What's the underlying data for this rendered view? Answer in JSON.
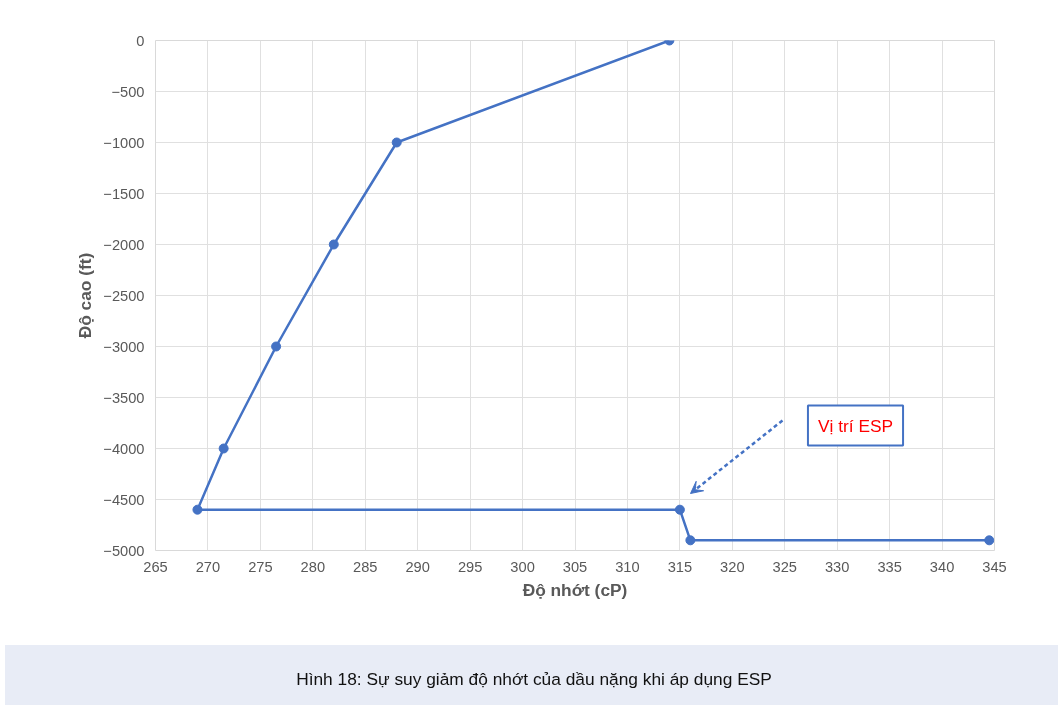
{
  "chart_data": {
    "type": "line",
    "xlabel": "Độ nhớt (cP)",
    "ylabel": "Độ cao (ft)",
    "x": [
      314,
      288,
      282,
      276.5,
      271.5,
      269,
      315,
      316,
      344.5
    ],
    "series": [
      {
        "color": "#4472c4",
        "values": [
          0,
          -1000,
          -2000,
          -3000,
          -4000,
          -4600,
          -4600,
          -4900,
          -4900
        ]
      }
    ],
    "xlim": [
      265,
      345
    ],
    "xticks": [
      265,
      270,
      275,
      280,
      285,
      290,
      295,
      300,
      305,
      310,
      315,
      320,
      325,
      330,
      335,
      340,
      345
    ],
    "ylim": [
      -5000,
      0
    ],
    "yticks": [
      -5000,
      -4500,
      -4000,
      -3500,
      -3000,
      -2500,
      -2000,
      -1500,
      -1000,
      -500,
      0
    ],
    "grid": true,
    "marker": "circle",
    "line_style": "solid",
    "annotations": [
      "Vị trí ESP",
      "Hình 18: Sự suy giảm độ nhớt của dầu nặng khi áp dụng ESP"
    ]
  }
}
